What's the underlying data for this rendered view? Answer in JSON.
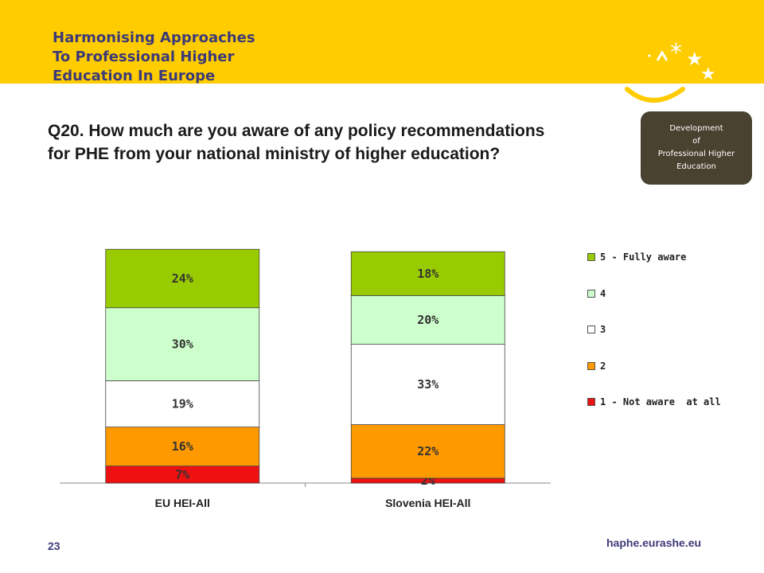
{
  "header": {
    "brand_lines": [
      "Harmonising Approaches",
      "To Professional Higher",
      "Education In Europe"
    ]
  },
  "tag": {
    "lines": [
      "Development",
      "of",
      "Professional Higher",
      "Education"
    ]
  },
  "footer": {
    "page_number": "23",
    "url": "haphe.eurashe.eu"
  },
  "colors": {
    "banner": "#ffcc00",
    "brand_text": "#3d3a78",
    "tag_bg": "#4a4230"
  },
  "chart_data": {
    "type": "bar",
    "stacked": true,
    "title": "Q20. How much are you aware of any policy recommendations for PHE from your national ministry of higher education?",
    "title_lines": [
      "Q20. How much are you aware of any policy recommendations",
      "for PHE from your national ministry of higher education?"
    ],
    "categories": [
      "EU HEI-All",
      "Slovenia HEI-All"
    ],
    "ylim": [
      0,
      100
    ],
    "grid": false,
    "legend_position": "right",
    "series": [
      {
        "name": "1 - Not aware  at all",
        "color": "#ee1111",
        "values": [
          7,
          2
        ],
        "labels": [
          "7%",
          "2%"
        ]
      },
      {
        "name": "2",
        "color": "#ff9900",
        "values": [
          16,
          22
        ],
        "labels": [
          "16%",
          "22%"
        ]
      },
      {
        "name": "3",
        "color": "#ffffff",
        "values": [
          19,
          33
        ],
        "labels": [
          "19%",
          "33%"
        ]
      },
      {
        "name": "4",
        "color": "#ccffcc",
        "values": [
          30,
          20
        ],
        "labels": [
          "30%",
          "20%"
        ]
      },
      {
        "name": "5 - Fully aware",
        "color": "#99cc00",
        "values": [
          24,
          18
        ],
        "labels": [
          "24%",
          "18%"
        ]
      }
    ]
  }
}
